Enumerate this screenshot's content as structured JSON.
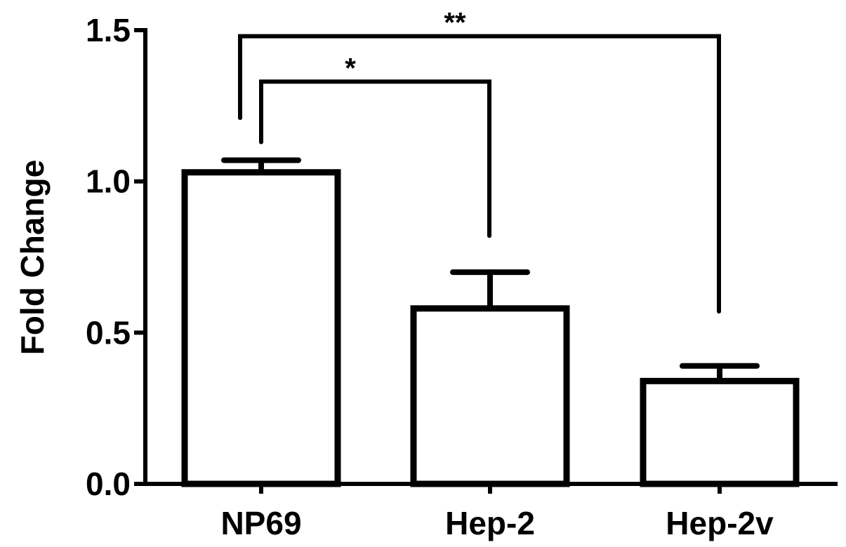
{
  "chart_data": {
    "type": "bar",
    "categories": [
      "NP69",
      "Hep-2",
      "Hep-2v"
    ],
    "values": [
      1.03,
      0.58,
      0.34
    ],
    "error_upper": [
      1.07,
      0.7,
      0.39
    ],
    "xlabel": "",
    "ylabel": "Fold Change",
    "ylim": [
      0,
      1.5
    ],
    "yticks": [
      0.0,
      0.5,
      1.0,
      1.5
    ],
    "ytick_labels": [
      "0.0",
      "0.5",
      "1.0",
      "1.5"
    ],
    "grid": false,
    "bar_fill": "#ffffff",
    "bar_edge": "#000000",
    "significance": [
      {
        "from": "NP69",
        "to": "Hep-2",
        "label": "*"
      },
      {
        "from": "NP69",
        "to": "Hep-2v",
        "label": "**"
      }
    ]
  }
}
